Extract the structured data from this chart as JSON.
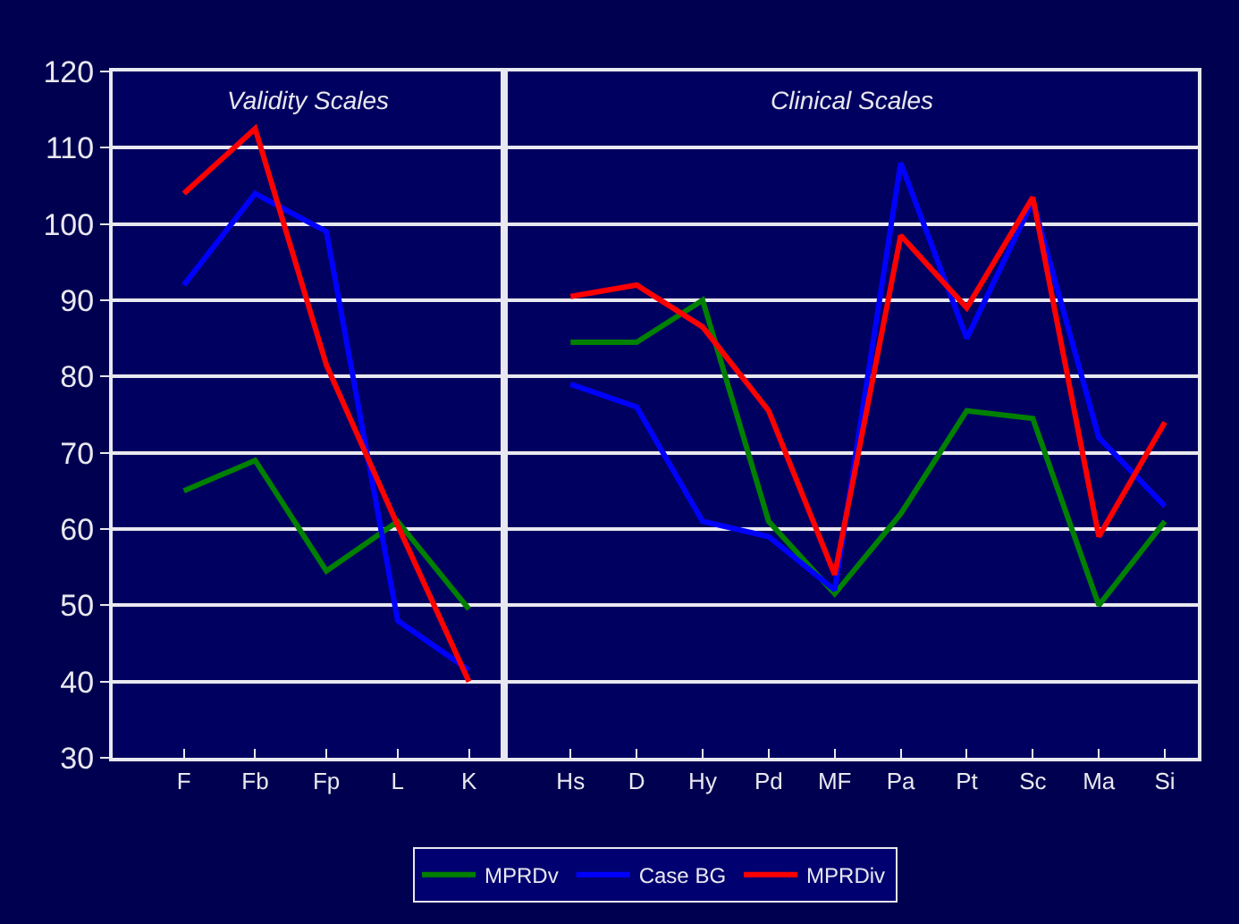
{
  "chart_data": [
    {
      "type": "line",
      "title": "Validity Scales",
      "categories": [
        "F",
        "Fb",
        "Fp",
        "L",
        "K"
      ],
      "ylim": [
        30,
        120
      ],
      "yticks": [
        30,
        40,
        50,
        60,
        70,
        80,
        90,
        100,
        110,
        120
      ],
      "grid": "y",
      "legend": "bottom",
      "marker": "none",
      "line_style": "solid",
      "series": [
        {
          "name": "MPRDv",
          "color": "#008000",
          "values": [
            65,
            69,
            54.5,
            61,
            49.5
          ]
        },
        {
          "name": "Case BG",
          "color": "#0000ff",
          "values": [
            92,
            104,
            99,
            48,
            41.5
          ]
        },
        {
          "name": "MPRDiv",
          "color": "#ff0000",
          "values": [
            104,
            112.5,
            81.5,
            60.5,
            40
          ]
        }
      ]
    },
    {
      "type": "line",
      "title": "Clinical Scales",
      "categories": [
        "Hs",
        "D",
        "Hy",
        "Pd",
        "MF",
        "Pa",
        "Pt",
        "Sc",
        "Ma",
        "Si"
      ],
      "ylim": [
        30,
        120
      ],
      "yticks": [
        30,
        40,
        50,
        60,
        70,
        80,
        90,
        100,
        110,
        120
      ],
      "tick_labels": "x",
      "grid": "y",
      "marker": "none",
      "line_style": "solid",
      "series": [
        {
          "color": "#008000",
          "values": [
            84.5,
            84.5,
            90,
            61,
            51.5,
            62,
            75.5,
            74.5,
            50,
            61
          ]
        },
        {
          "color": "#0000ff",
          "values": [
            79,
            76,
            61,
            59,
            52,
            108,
            85,
            103,
            72,
            63
          ]
        },
        {
          "color": "#ff0000",
          "values": [
            90.5,
            92,
            86.5,
            75.5,
            54,
            98.5,
            89,
            103.5,
            59,
            74
          ]
        }
      ]
    }
  ]
}
